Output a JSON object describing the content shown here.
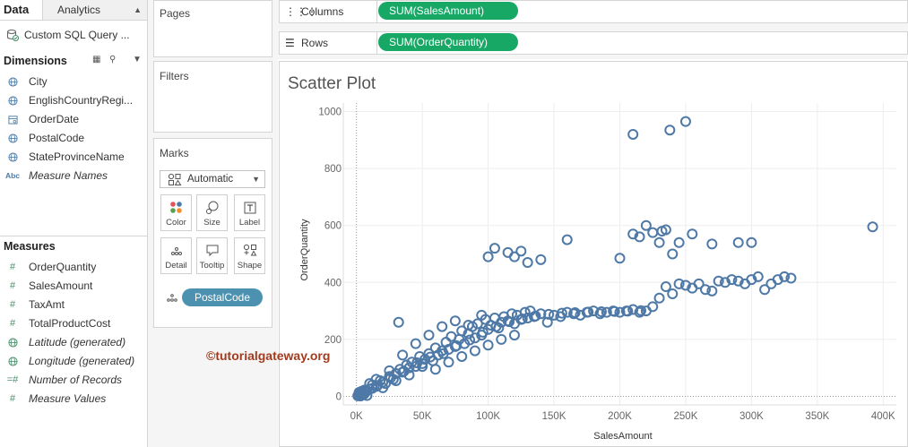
{
  "data_pane": {
    "tab_data": "Data",
    "tab_analytics": "Analytics",
    "datasource": "Custom SQL Query ...",
    "dimensions_header": "Dimensions",
    "dimensions": [
      {
        "label": "City",
        "icon": "globe-icon"
      },
      {
        "label": "EnglishCountryRegi...",
        "icon": "globe-icon"
      },
      {
        "label": "OrderDate",
        "icon": "calendar-icon"
      },
      {
        "label": "PostalCode",
        "icon": "globe-icon"
      },
      {
        "label": "StateProvinceName",
        "icon": "globe-icon"
      },
      {
        "label": "Measure Names",
        "icon": "abc-icon"
      }
    ],
    "measures_header": "Measures",
    "measures": [
      {
        "label": "OrderQuantity",
        "icon": "hash-icon"
      },
      {
        "label": "SalesAmount",
        "icon": "hash-icon"
      },
      {
        "label": "TaxAmt",
        "icon": "hash-icon"
      },
      {
        "label": "TotalProductCost",
        "icon": "hash-icon"
      },
      {
        "label": "Latitude (generated)",
        "icon": "globe-icon"
      },
      {
        "label": "Longitude (generated)",
        "icon": "globe-icon"
      },
      {
        "label": "Number of Records",
        "icon": "hash-icon"
      },
      {
        "label": "Measure Values",
        "icon": "hash-icon"
      }
    ]
  },
  "cards": {
    "pages_title": "Pages",
    "filters_title": "Filters",
    "marks_title": "Marks",
    "mark_type": "Automatic",
    "mark_buttons": [
      "Color",
      "Size",
      "Label",
      "Detail",
      "Tooltip",
      "Shape"
    ],
    "detail_pill": "PostalCode"
  },
  "shelves": {
    "columns_label": "Columns",
    "columns_pill": "SUM(SalesAmount)",
    "rows_label": "Rows",
    "rows_pill": "SUM(OrderQuantity)"
  },
  "viz": {
    "title": "Scatter Plot",
    "watermark": "©tutorialgateway.org"
  },
  "colors": {
    "marks": "#4e79a7",
    "pill_green": "#18a866",
    "pill_teal": "#4c92b0"
  },
  "chart_data": {
    "type": "scatter",
    "title": "Scatter Plot",
    "xlabel": "SalesAmount",
    "ylabel": "OrderQuantity",
    "xlim": [
      -10000,
      410000
    ],
    "ylim": [
      -30,
      1030
    ],
    "x_ticks": [
      "0K",
      "50K",
      "100K",
      "150K",
      "200K",
      "250K",
      "300K",
      "350K",
      "400K"
    ],
    "y_ticks": [
      "0",
      "200",
      "400",
      "600",
      "800",
      "1000"
    ],
    "grid": true,
    "marker": "open-circle",
    "series": [
      {
        "points": [
          [
            1000,
            2
          ],
          [
            1500,
            4
          ],
          [
            2000,
            6
          ],
          [
            2500,
            3
          ],
          [
            3000,
            8
          ],
          [
            3500,
            5
          ],
          [
            4000,
            10
          ],
          [
            5000,
            12
          ],
          [
            6000,
            9
          ],
          [
            7000,
            15
          ],
          [
            8000,
            20
          ],
          [
            10000,
            25
          ],
          [
            12000,
            40
          ],
          [
            15000,
            35
          ],
          [
            18000,
            55
          ],
          [
            20000,
            50
          ],
          [
            22000,
            45
          ],
          [
            25000,
            70
          ],
          [
            28000,
            60
          ],
          [
            30000,
            80
          ],
          [
            32000,
            260
          ],
          [
            33000,
            95
          ],
          [
            35000,
            85
          ],
          [
            38000,
            110
          ],
          [
            40000,
            100
          ],
          [
            42000,
            120
          ],
          [
            45000,
            105
          ],
          [
            48000,
            140
          ],
          [
            50000,
            115
          ],
          [
            52000,
            130
          ],
          [
            55000,
            150
          ],
          [
            58000,
            125
          ],
          [
            60000,
            170
          ],
          [
            62000,
            145
          ],
          [
            65000,
            160
          ],
          [
            68000,
            190
          ],
          [
            70000,
            165
          ],
          [
            72000,
            210
          ],
          [
            75000,
            175
          ],
          [
            78000,
            200
          ],
          [
            80000,
            230
          ],
          [
            82000,
            185
          ],
          [
            85000,
            220
          ],
          [
            88000,
            245
          ],
          [
            90000,
            205
          ],
          [
            92000,
            255
          ],
          [
            95000,
            215
          ],
          [
            98000,
            270
          ],
          [
            100000,
            235
          ],
          [
            102000,
            250
          ],
          [
            105000,
            275
          ],
          [
            108000,
            240
          ],
          [
            110000,
            260
          ],
          [
            112000,
            280
          ],
          [
            115000,
            265
          ],
          [
            118000,
            290
          ],
          [
            120000,
            255
          ],
          [
            122000,
            285
          ],
          [
            125000,
            270
          ],
          [
            128000,
            295
          ],
          [
            130000,
            275
          ],
          [
            132000,
            300
          ],
          [
            135000,
            280
          ],
          [
            140000,
            290
          ],
          [
            145000,
            260
          ],
          [
            150000,
            285
          ],
          [
            155000,
            280
          ],
          [
            160000,
            295
          ],
          [
            165000,
            290
          ],
          [
            170000,
            285
          ],
          [
            175000,
            295
          ],
          [
            180000,
            300
          ],
          [
            185000,
            290
          ],
          [
            190000,
            295
          ],
          [
            195000,
            300
          ],
          [
            200000,
            295
          ],
          [
            205000,
            300
          ],
          [
            210000,
            305
          ],
          [
            215000,
            295
          ],
          [
            220000,
            300
          ],
          [
            225000,
            315
          ],
          [
            230000,
            345
          ],
          [
            235000,
            385
          ],
          [
            240000,
            360
          ],
          [
            245000,
            395
          ],
          [
            250000,
            390
          ],
          [
            255000,
            380
          ],
          [
            260000,
            395
          ],
          [
            265000,
            375
          ],
          [
            270000,
            370
          ],
          [
            275000,
            405
          ],
          [
            280000,
            400
          ],
          [
            285000,
            410
          ],
          [
            290000,
            405
          ],
          [
            295000,
            395
          ],
          [
            300000,
            410
          ],
          [
            305000,
            420
          ],
          [
            310000,
            375
          ],
          [
            315000,
            395
          ],
          [
            320000,
            410
          ],
          [
            325000,
            420
          ],
          [
            330000,
            415
          ],
          [
            100000,
            490
          ],
          [
            105000,
            520
          ],
          [
            115000,
            505
          ],
          [
            120000,
            490
          ],
          [
            125000,
            510
          ],
          [
            130000,
            470
          ],
          [
            140000,
            480
          ],
          [
            160000,
            550
          ],
          [
            200000,
            485
          ],
          [
            210000,
            570
          ],
          [
            215000,
            560
          ],
          [
            220000,
            600
          ],
          [
            225000,
            575
          ],
          [
            230000,
            540
          ],
          [
            232000,
            580
          ],
          [
            235000,
            585
          ],
          [
            240000,
            500
          ],
          [
            245000,
            540
          ],
          [
            255000,
            570
          ],
          [
            270000,
            535
          ],
          [
            290000,
            540
          ],
          [
            210000,
            920
          ],
          [
            238000,
            935
          ],
          [
            250000,
            965
          ],
          [
            392000,
            595
          ],
          [
            300000,
            540
          ],
          [
            35000,
            145
          ],
          [
            45000,
            185
          ],
          [
            55000,
            215
          ],
          [
            65000,
            245
          ],
          [
            75000,
            265
          ],
          [
            85000,
            250
          ],
          [
            95000,
            285
          ],
          [
            60000,
            95
          ],
          [
            70000,
            120
          ],
          [
            80000,
            140
          ],
          [
            90000,
            160
          ],
          [
            100000,
            180
          ],
          [
            110000,
            200
          ],
          [
            120000,
            215
          ],
          [
            25000,
            90
          ],
          [
            15000,
            60
          ],
          [
            10000,
            45
          ],
          [
            50000,
            105
          ],
          [
            40000,
            75
          ],
          [
            30000,
            55
          ],
          [
            20000,
            30
          ],
          [
            5000,
            6
          ],
          [
            3000,
            1
          ],
          [
            2000,
            14
          ],
          [
            8000,
            3
          ],
          [
            4000,
            18
          ],
          [
            6000,
            22
          ],
          [
            12000,
            28
          ],
          [
            16000,
            38
          ],
          [
            26000,
            65
          ],
          [
            36000,
            88
          ],
          [
            46000,
            118
          ],
          [
            56000,
            138
          ],
          [
            66000,
            150
          ],
          [
            76000,
            178
          ],
          [
            86000,
            198
          ],
          [
            96000,
            225
          ],
          [
            106000,
            245
          ],
          [
            116000,
            262
          ],
          [
            126000,
            272
          ],
          [
            136000,
            282
          ],
          [
            146000,
            288
          ],
          [
            156000,
            292
          ],
          [
            166000,
            294
          ],
          [
            176000,
            296
          ],
          [
            186000,
            297
          ],
          [
            196000,
            298
          ],
          [
            206000,
            299
          ],
          [
            216000,
            301
          ]
        ]
      }
    ]
  }
}
